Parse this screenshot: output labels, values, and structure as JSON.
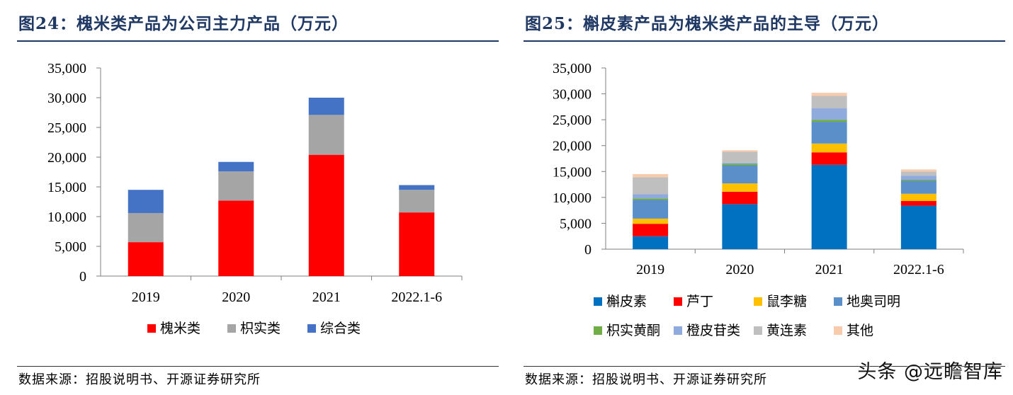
{
  "figures": [
    {
      "title": "图24：槐米类产品为公司主力产品（万元）",
      "source": "数据来源：招股说明书、开源证券研究所"
    },
    {
      "title": "图25：槲皮素产品为槐米类产品的主导（万元）",
      "source": "数据来源：招股说明书、开源证券研究所"
    }
  ],
  "watermark": "头条 @远瞻智库",
  "chart_data": [
    {
      "type": "bar",
      "stacked": true,
      "categories": [
        "2019",
        "2020",
        "2021",
        "2022.1-6"
      ],
      "series": [
        {
          "name": "槐米类",
          "color": "#ff0000",
          "values": [
            5700,
            12700,
            20400,
            10700
          ]
        },
        {
          "name": "枳实类",
          "color": "#a5a5a5",
          "values": [
            4900,
            4900,
            6700,
            3800
          ]
        },
        {
          "name": "综合类",
          "color": "#4472c4",
          "values": [
            3900,
            1600,
            2900,
            800
          ]
        }
      ],
      "ylim": [
        0,
        35000
      ],
      "yticks": [
        0,
        5000,
        10000,
        15000,
        20000,
        25000,
        30000,
        35000
      ],
      "ytick_labels": [
        "0",
        "5,000",
        "10,000",
        "15,000",
        "20,000",
        "25,000",
        "30,000",
        "35,000"
      ],
      "legend_position": "bottom",
      "grid": false
    },
    {
      "type": "bar",
      "stacked": true,
      "categories": [
        "2019",
        "2020",
        "2021",
        "2022.1-6"
      ],
      "series": [
        {
          "name": "槲皮素",
          "color": "#0070c0",
          "values": [
            2500,
            8700,
            16300,
            8400
          ]
        },
        {
          "name": "芦丁",
          "color": "#ff0000",
          "values": [
            2400,
            2400,
            2400,
            900
          ]
        },
        {
          "name": "鼠李糖",
          "color": "#ffc000",
          "values": [
            1000,
            1600,
            1700,
            1400
          ]
        },
        {
          "name": "地奥司明",
          "color": "#5b8fc9",
          "values": [
            3600,
            3500,
            4200,
            2500
          ]
        },
        {
          "name": "枳实黄酮",
          "color": "#70ad47",
          "values": [
            300,
            300,
            400,
            200
          ]
        },
        {
          "name": "橙皮苷类",
          "color": "#8faadc",
          "values": [
            800,
            200,
            2200,
            800
          ]
        },
        {
          "name": "黄连素",
          "color": "#bfbfbf",
          "values": [
            3300,
            2100,
            2400,
            800
          ]
        },
        {
          "name": "其他",
          "color": "#f8cbad",
          "values": [
            600,
            300,
            600,
            400
          ]
        }
      ],
      "ylim": [
        0,
        35000
      ],
      "yticks": [
        0,
        5000,
        10000,
        15000,
        20000,
        25000,
        30000,
        35000
      ],
      "ytick_labels": [
        "0",
        "5,000",
        "10,000",
        "15,000",
        "20,000",
        "25,000",
        "30,000",
        "35,000"
      ],
      "legend_position": "bottom",
      "grid": false
    }
  ]
}
